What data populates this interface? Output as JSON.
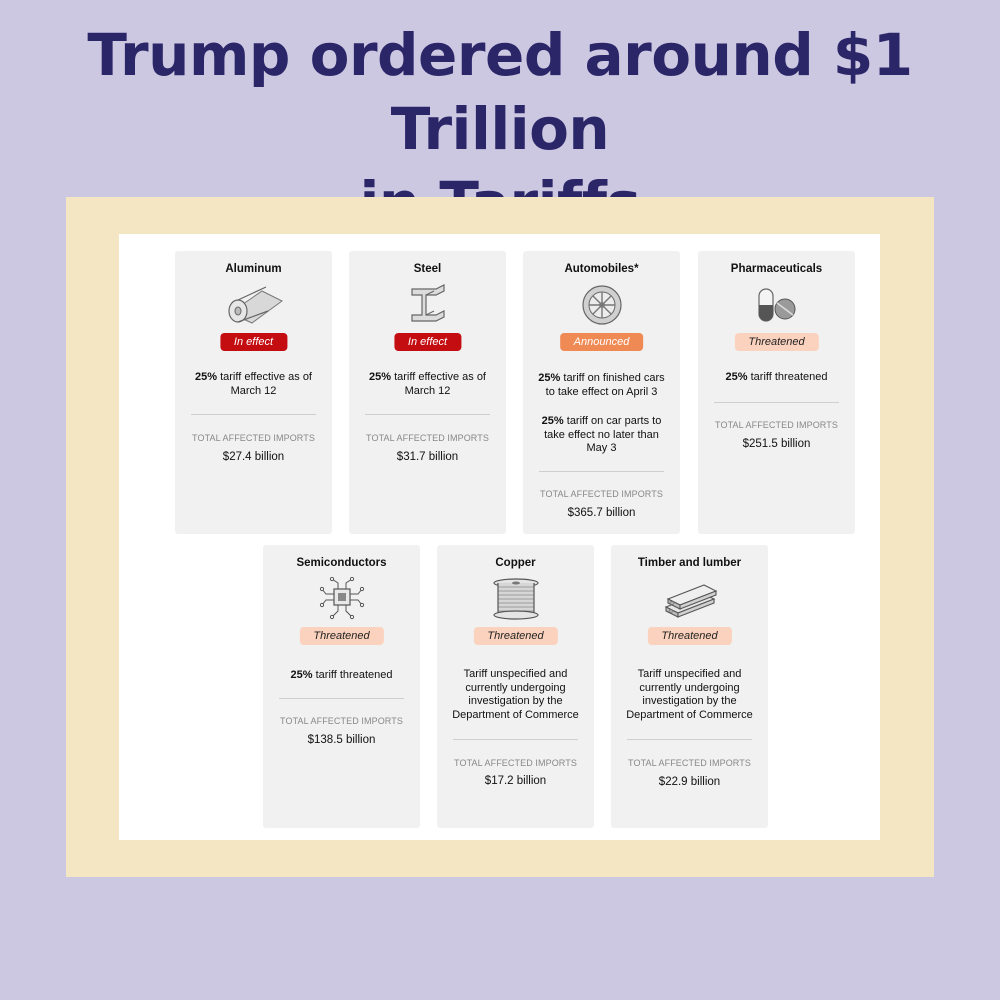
{
  "headline": {
    "line1": "Trump ordered around $1 Trillion",
    "line2": "in Tariffs"
  },
  "imports_label": "TOTAL AFFECTED IMPORTS",
  "colors": {
    "background": "#cdc8e2",
    "frame": "#f5e6c3",
    "headline": "#2b2668",
    "in_effect": "#c40d10",
    "announced": "#f08a55",
    "threatened": "#fbd2bd"
  },
  "cards": [
    {
      "category": "Aluminum",
      "icon": "aluminum-roll-icon",
      "status": "In effect",
      "desc1_bold": "25%",
      "desc1": " tariff effective as of March 12",
      "imports": "$27.4 billion"
    },
    {
      "category": "Steel",
      "icon": "steel-beam-icon",
      "status": "In effect",
      "desc1_bold": "25%",
      "desc1": " tariff effective as of March 12",
      "imports": "$31.7 billion"
    },
    {
      "category": "Automobiles*",
      "icon": "car-wheel-icon",
      "status": "Announced",
      "desc1_bold": "25%",
      "desc1": " tariff on finished cars to take effect on April 3",
      "desc2_bold": "25%",
      "desc2": " tariff on car parts to take effect no later than May 3",
      "imports": "$365.7 billion"
    },
    {
      "category": "Pharmaceuticals",
      "icon": "pills-icon",
      "status": "Threatened",
      "desc1_bold": "25%",
      "desc1": " tariff threatened",
      "imports": "$251.5 billion"
    },
    {
      "category": "Semiconductors",
      "icon": "microchip-icon",
      "status": "Threatened",
      "desc1_bold": "25%",
      "desc1": " tariff threatened",
      "imports": "$138.5 billion"
    },
    {
      "category": "Copper",
      "icon": "copper-spool-icon",
      "status": "Threatened",
      "desc1_bold": "",
      "desc1": "Tariff unspecified and currently undergoing investigation by the Department of Commerce",
      "imports": "$17.2 billion"
    },
    {
      "category": "Timber and lumber",
      "icon": "lumber-planks-icon",
      "status": "Threatened",
      "desc1_bold": "",
      "desc1": "Tariff unspecified and currently undergoing investigation by the Department of Commerce",
      "imports": "$22.9 billion"
    }
  ]
}
